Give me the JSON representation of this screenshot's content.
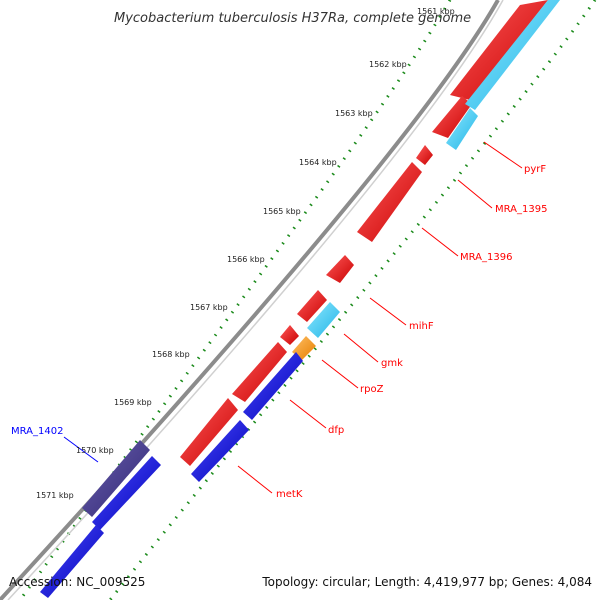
{
  "title": "Mycobacterium tuberculosis H37Ra, complete genome",
  "accession": "Accession: NC_009525",
  "topology": "Topology: circular; Length: 4,419,977 bp; Genes: 4,084",
  "colors": {
    "backbone": "#8c8c8c",
    "forward_gene": "#ff0000",
    "reverse_gene": "#0000ff",
    "cyan_gene": "#33ccff",
    "orange_gene": "#ff9900",
    "purple_gene": "#4a3f8c",
    "tick": "#008000",
    "label_red": "#ff0000",
    "label_blue": "#0000ff"
  },
  "ticks": [
    {
      "label": "1561 kbp"
    },
    {
      "label": "1562 kbp"
    },
    {
      "label": "1563 kbp"
    },
    {
      "label": "1564 kbp"
    },
    {
      "label": "1565 kbp"
    },
    {
      "label": "1566 kbp"
    },
    {
      "label": "1567 kbp"
    },
    {
      "label": "1568 kbp"
    },
    {
      "label": "1569 kbp"
    },
    {
      "label": "1570 kbp"
    },
    {
      "label": "1571 kbp"
    }
  ],
  "genes": [
    {
      "name": "pyrF",
      "color": "red"
    },
    {
      "name": "MRA_1395",
      "color": "red"
    },
    {
      "name": "MRA_1396",
      "color": "red"
    },
    {
      "name": "mihF",
      "color": "red"
    },
    {
      "name": "gmk",
      "color": "red"
    },
    {
      "name": "rpoZ",
      "color": "red"
    },
    {
      "name": "dfp",
      "color": "red"
    },
    {
      "name": "metK",
      "color": "red"
    },
    {
      "name": "MRA_1402",
      "color": "blue"
    }
  ]
}
